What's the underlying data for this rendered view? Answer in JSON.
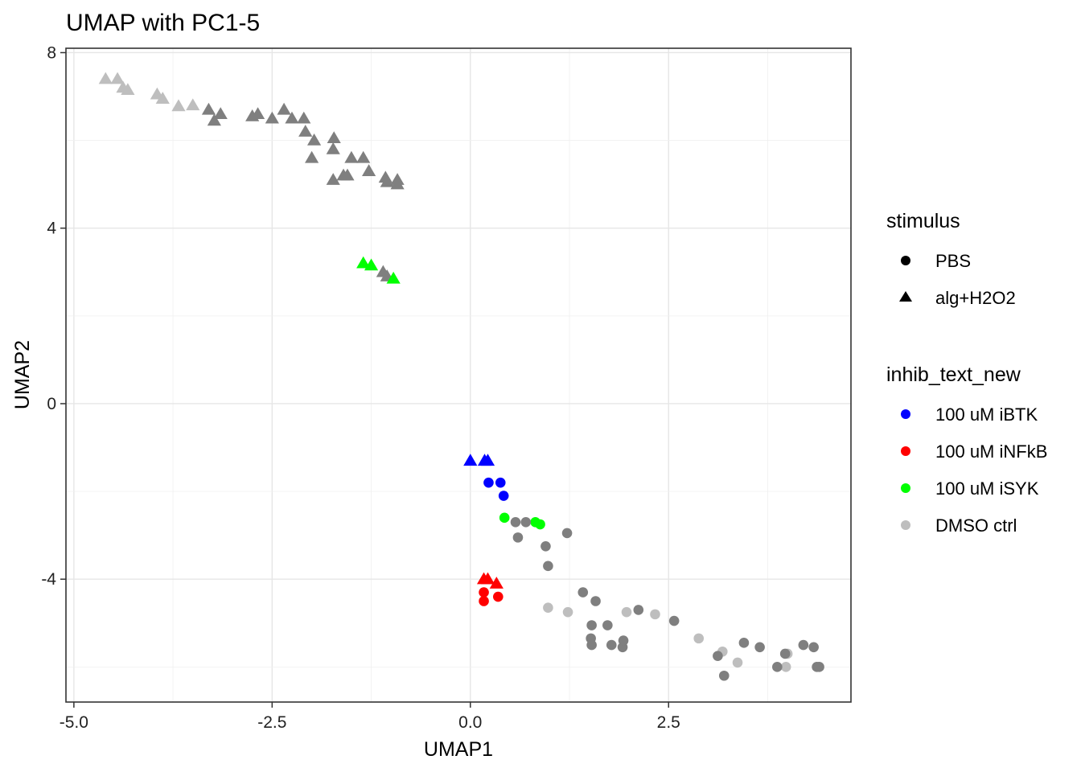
{
  "chart_data": {
    "type": "scatter",
    "title": "UMAP with PC1-5",
    "xlabel": "UMAP1",
    "ylabel": "UMAP2",
    "xlim": [
      -5.1,
      4.8
    ],
    "ylim": [
      -6.8,
      8.1
    ],
    "xticks": [
      -5.0,
      -2.5,
      0.0,
      2.5
    ],
    "xtick_labels": [
      "-5.0",
      "-2.5",
      "0.0",
      "2.5"
    ],
    "yticks": [
      8,
      4,
      0,
      -4
    ],
    "ytick_labels": [
      "8",
      "4",
      "0",
      "-4"
    ],
    "grid": true,
    "legend_position": "right",
    "legends": {
      "stimulus": {
        "title": "stimulus",
        "items": [
          {
            "label": "PBS",
            "shape": "circle"
          },
          {
            "label": "alg+H2O2",
            "shape": "triangle"
          }
        ]
      },
      "inhib": {
        "title": "inhib_text_new",
        "items": [
          {
            "label": "100 uM iBTK",
            "color": "#0000ff"
          },
          {
            "label": "100 uM iNFkB",
            "color": "#ff0000"
          },
          {
            "label": "100 uM iSYK",
            "color": "#00ff00"
          },
          {
            "label": "DMSO ctrl",
            "color": "#bebebe"
          }
        ]
      }
    },
    "colors": {
      "iBTK": "#0000ff",
      "iNFkB": "#ff0000",
      "iSYK": "#00ff00",
      "DMSO": "#bebebe",
      "other": "#7f7f7f"
    },
    "series": [
      {
        "inhib": "DMSO",
        "shape": "triangle",
        "points": [
          [
            -4.6,
            7.4
          ],
          [
            -4.45,
            7.4
          ],
          [
            -4.38,
            7.2
          ],
          [
            -4.32,
            7.15
          ],
          [
            -3.95,
            7.05
          ],
          [
            -3.88,
            6.95
          ],
          [
            -3.68,
            6.78
          ],
          [
            -3.5,
            6.8
          ]
        ]
      },
      {
        "inhib": "other",
        "shape": "triangle",
        "points": [
          [
            -3.3,
            6.7
          ],
          [
            -3.23,
            6.45
          ],
          [
            -3.15,
            6.6
          ],
          [
            -2.75,
            6.55
          ],
          [
            -2.68,
            6.6
          ],
          [
            -2.5,
            6.5
          ],
          [
            -2.35,
            6.7
          ],
          [
            -2.25,
            6.5
          ],
          [
            -2.1,
            6.5
          ],
          [
            -2.08,
            6.2
          ],
          [
            -1.97,
            6.0
          ],
          [
            -1.73,
            5.8
          ],
          [
            -1.72,
            6.05
          ],
          [
            -2.0,
            5.6
          ],
          [
            -1.5,
            5.6
          ],
          [
            -1.35,
            5.6
          ],
          [
            -1.28,
            5.3
          ],
          [
            -1.73,
            5.1
          ],
          [
            -1.6,
            5.2
          ],
          [
            -1.55,
            5.2
          ],
          [
            -1.07,
            5.15
          ],
          [
            -1.05,
            5.05
          ],
          [
            -0.92,
            5.1
          ],
          [
            -0.92,
            5.0
          ],
          [
            -1.1,
            3.0
          ],
          [
            -1.05,
            2.9
          ]
        ]
      },
      {
        "inhib": "iSYK",
        "shape": "triangle",
        "points": [
          [
            -1.35,
            3.2
          ],
          [
            -1.25,
            3.15
          ],
          [
            -0.97,
            2.85
          ]
        ]
      },
      {
        "inhib": "iBTK",
        "shape": "triangle",
        "points": [
          [
            0.0,
            -1.3
          ],
          [
            0.18,
            -1.3
          ],
          [
            0.22,
            -1.3
          ]
        ]
      },
      {
        "inhib": "iNFkB",
        "shape": "triangle",
        "points": [
          [
            0.17,
            -4.0
          ],
          [
            0.22,
            -4.0
          ],
          [
            0.33,
            -4.1
          ]
        ]
      },
      {
        "inhib": "iBTK",
        "shape": "circle",
        "points": [
          [
            0.23,
            -1.8
          ],
          [
            0.38,
            -1.8
          ],
          [
            0.42,
            -2.1
          ]
        ]
      },
      {
        "inhib": "iNFkB",
        "shape": "circle",
        "points": [
          [
            0.17,
            -4.3
          ],
          [
            0.35,
            -4.4
          ],
          [
            0.17,
            -4.5
          ]
        ]
      },
      {
        "inhib": "iSYK",
        "shape": "circle",
        "points": [
          [
            0.43,
            -2.6
          ],
          [
            0.82,
            -2.7
          ],
          [
            0.88,
            -2.75
          ]
        ]
      },
      {
        "inhib": "DMSO",
        "shape": "circle",
        "points": [
          [
            0.98,
            -4.65
          ],
          [
            1.23,
            -4.75
          ],
          [
            1.97,
            -4.75
          ],
          [
            2.33,
            -4.8
          ],
          [
            2.88,
            -5.35
          ],
          [
            3.18,
            -5.65
          ],
          [
            3.37,
            -5.9
          ],
          [
            3.98,
            -6.0
          ],
          [
            4.0,
            -5.7
          ]
        ]
      },
      {
        "inhib": "other",
        "shape": "circle",
        "points": [
          [
            0.57,
            -2.7
          ],
          [
            0.7,
            -2.7
          ],
          [
            0.6,
            -3.05
          ],
          [
            0.95,
            -3.25
          ],
          [
            1.22,
            -2.95
          ],
          [
            0.98,
            -3.7
          ],
          [
            1.42,
            -4.3
          ],
          [
            1.58,
            -4.5
          ],
          [
            1.53,
            -5.05
          ],
          [
            1.52,
            -5.35
          ],
          [
            1.53,
            -5.5
          ],
          [
            1.73,
            -5.05
          ],
          [
            1.78,
            -5.5
          ],
          [
            1.92,
            -5.55
          ],
          [
            1.93,
            -5.4
          ],
          [
            2.12,
            -4.7
          ],
          [
            2.57,
            -4.95
          ],
          [
            3.12,
            -5.75
          ],
          [
            3.2,
            -6.2
          ],
          [
            3.45,
            -5.45
          ],
          [
            3.65,
            -5.55
          ],
          [
            3.87,
            -6.0
          ],
          [
            3.97,
            -5.7
          ],
          [
            4.2,
            -5.5
          ],
          [
            4.33,
            -5.55
          ],
          [
            4.37,
            -6.0
          ],
          [
            4.4,
            -6.0
          ]
        ]
      }
    ]
  }
}
